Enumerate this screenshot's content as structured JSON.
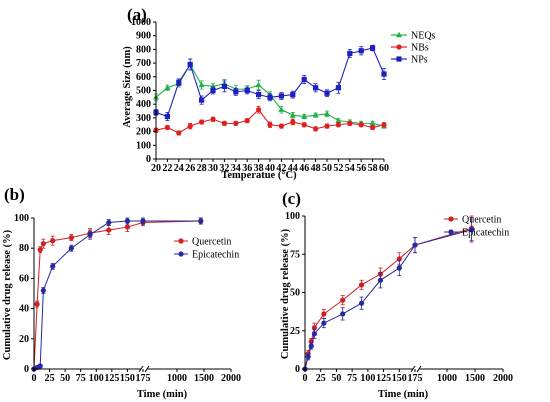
{
  "chart_data": [
    {
      "panel": "(a)",
      "type": "line",
      "xlabel": "Temperatue (°C)",
      "ylabel": "Average Size (nm)",
      "xlim": [
        20,
        60
      ],
      "ylim": [
        0,
        1000
      ],
      "xticks": [
        "20",
        "22",
        "24",
        "26",
        "28",
        "30",
        "32",
        "34",
        "36",
        "38",
        "40",
        "42",
        "44",
        "46",
        "48",
        "50",
        "52",
        "54",
        "56",
        "58",
        "60"
      ],
      "yticks": [
        "0",
        "100",
        "200",
        "300",
        "400",
        "500",
        "600",
        "700",
        "800",
        "900",
        "1000"
      ],
      "legend_position": "top-right",
      "x": [
        20,
        22,
        24,
        26,
        28,
        30,
        32,
        34,
        36,
        38,
        40,
        42,
        44,
        46,
        48,
        50,
        52,
        54,
        56,
        58,
        60
      ],
      "series": [
        {
          "name": "NEQs",
          "color": "#22b04a",
          "marker": "triangle",
          "values": [
            450,
            520,
            550,
            690,
            540,
            530,
            550,
            510,
            510,
            540,
            470,
            360,
            320,
            310,
            320,
            330,
            280,
            270,
            260,
            260,
            240
          ],
          "errors": [
            25,
            20,
            25,
            40,
            30,
            20,
            30,
            25,
            25,
            35,
            20,
            25,
            20,
            15,
            15,
            20,
            15,
            15,
            15,
            15,
            15
          ]
        },
        {
          "name": "NBs",
          "color": "#e02020",
          "marker": "circle",
          "values": [
            210,
            230,
            190,
            240,
            270,
            290,
            260,
            260,
            280,
            360,
            250,
            240,
            270,
            250,
            220,
            240,
            250,
            260,
            250,
            230,
            250
          ],
          "errors": [
            15,
            15,
            15,
            20,
            15,
            15,
            15,
            15,
            15,
            25,
            20,
            15,
            20,
            15,
            15,
            15,
            15,
            15,
            15,
            15,
            15
          ]
        },
        {
          "name": "NPs",
          "color": "#2020c0",
          "marker": "square",
          "values": [
            340,
            310,
            560,
            690,
            430,
            500,
            530,
            490,
            500,
            470,
            450,
            460,
            470,
            580,
            520,
            480,
            520,
            770,
            790,
            810,
            620
          ],
          "errors": [
            20,
            30,
            25,
            40,
            30,
            25,
            40,
            25,
            25,
            30,
            25,
            25,
            25,
            30,
            30,
            25,
            40,
            30,
            30,
            20,
            40
          ]
        }
      ]
    },
    {
      "panel": "(b)",
      "type": "line",
      "xlabel": "Time (min)",
      "ylabel": "Cumulative drug  release (%)",
      "ylim": [
        0,
        100
      ],
      "axis_break": "175-1000",
      "xticks": [
        "0",
        "25",
        "50",
        "75",
        "100",
        "125",
        "150",
        "175",
        "1000",
        "1500",
        "2000"
      ],
      "yticks": [
        "0",
        "20",
        "40",
        "60",
        "80",
        "100"
      ],
      "legend_position": "center-right",
      "series": [
        {
          "name": "Quercetin",
          "color": "#d02020",
          "marker": "circle",
          "x": [
            0,
            5,
            10,
            15,
            30,
            60,
            90,
            120,
            150,
            175,
            1440
          ],
          "values": [
            0,
            43,
            79,
            83,
            85,
            87,
            90,
            92,
            94,
            97,
            98
          ],
          "errors": [
            0,
            2,
            2,
            3,
            3,
            2,
            3,
            3,
            3,
            2,
            2
          ]
        },
        {
          "name": "Epicatechin",
          "color": "#2828a0",
          "marker": "circle",
          "x": [
            0,
            5,
            10,
            15,
            30,
            60,
            90,
            120,
            150,
            175,
            1440
          ],
          "values": [
            0,
            1,
            2,
            52,
            68,
            80,
            89,
            97,
            98,
            98,
            98
          ],
          "errors": [
            0,
            1,
            1,
            2,
            2,
            2,
            3,
            2,
            2,
            2,
            2
          ]
        }
      ]
    },
    {
      "panel": "(c)",
      "type": "line",
      "xlabel": "Time (min)",
      "ylabel": "Cumulative drug  release (%)",
      "ylim": [
        0,
        100
      ],
      "axis_break": "175-1000",
      "xticks": [
        "0",
        "25",
        "50",
        "75",
        "100",
        "125",
        "150",
        "175",
        "1000",
        "1500",
        "2000"
      ],
      "yticks": [
        "0",
        "25",
        "50",
        "75",
        "100"
      ],
      "legend_position": "top-right",
      "series": [
        {
          "name": "Quercetin",
          "color": "#d02020",
          "marker": "circle",
          "x": [
            0,
            5,
            10,
            15,
            30,
            60,
            90,
            120,
            150,
            175,
            1440
          ],
          "values": [
            0,
            10,
            18,
            27,
            36,
            45,
            55,
            62,
            72,
            81,
            92
          ],
          "errors": [
            0,
            2,
            2,
            3,
            3,
            3,
            3,
            4,
            4,
            5,
            8
          ]
        },
        {
          "name": "Epicatechin",
          "color": "#2828a0",
          "marker": "circle",
          "x": [
            0,
            5,
            10,
            15,
            30,
            60,
            90,
            120,
            150,
            175,
            1440
          ],
          "values": [
            0,
            8,
            15,
            23,
            30,
            36,
            43,
            58,
            66,
            81,
            91
          ],
          "errors": [
            0,
            2,
            2,
            3,
            3,
            4,
            4,
            5,
            5,
            5,
            8
          ]
        }
      ]
    }
  ]
}
